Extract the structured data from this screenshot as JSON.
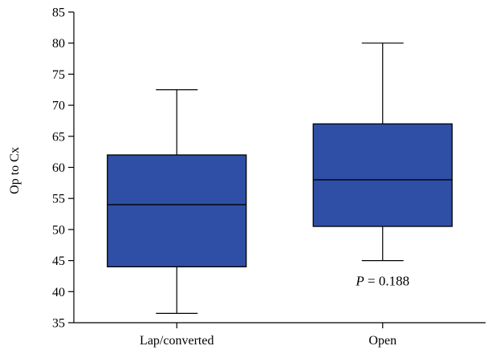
{
  "chart_data": {
    "type": "box",
    "categories": [
      "Lap/converted",
      "Open"
    ],
    "series": [
      {
        "category": "Lap/converted",
        "min": 36.5,
        "q1": 44,
        "median": 54,
        "q3": 62,
        "max": 72.5
      },
      {
        "category": "Open",
        "min": 45,
        "q1": 50.5,
        "median": 58,
        "q3": 67,
        "max": 80
      }
    ],
    "ylabel": "Op to Cx",
    "xlabel": "",
    "ylim": [
      35,
      85
    ],
    "yticks": [
      35,
      40,
      45,
      50,
      55,
      60,
      65,
      70,
      75,
      80,
      85
    ],
    "grid": false,
    "box_color": "#2f4fa6",
    "annotation": {
      "p_symbol": "P",
      "p_text": " = 0.188",
      "attached_to": "Open"
    }
  }
}
